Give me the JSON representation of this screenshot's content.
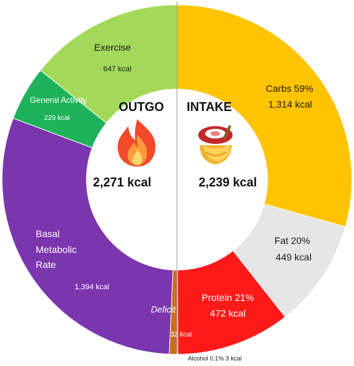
{
  "chart_data": {
    "type": "pie",
    "variant": "donut-split",
    "outgo": {
      "title": "OUTGO",
      "total_label": "2,271 kcal",
      "total_kcal": 2271,
      "icon": "flame-icon",
      "segments": [
        {
          "name": "Exercise",
          "value_label": "647 kcal",
          "value": 647,
          "color": "#a3d95a"
        },
        {
          "name": "General Activity",
          "value_label": "229 kcal",
          "value": 229,
          "color": "#1fb25a"
        },
        {
          "name": "Basal Metabolic Rate",
          "name_lines": [
            "Basal",
            "Metabolic",
            "Rate"
          ],
          "value_label": "1,394 kcal",
          "value": 1394,
          "color": "#7b35ad"
        }
      ]
    },
    "intake": {
      "title": "INTAKE",
      "total_label": "2,239 kcal",
      "total_kcal": 2239,
      "icon": "food-bowl-icon",
      "segments": [
        {
          "name": "Carbs 59%",
          "value_label": "1,314 kcal",
          "value": 1314,
          "percent": 59,
          "color": "#ffc400"
        },
        {
          "name": "Fat 20%",
          "value_label": "449 kcal",
          "value": 449,
          "percent": 20,
          "color": "#e6e6e6"
        },
        {
          "name": "Protein 21%",
          "value_label": "472 kcal",
          "value": 472,
          "percent": 21,
          "color": "#ff1a1a"
        },
        {
          "name": "Alcohol 0.1% 3 kcal",
          "value": 3,
          "percent": 0.1,
          "color": "#a0d0ff"
        }
      ]
    },
    "deficit": {
      "label": "Deficit",
      "value_label": "32 kcal",
      "value": 32,
      "color": "#c8701e"
    }
  }
}
